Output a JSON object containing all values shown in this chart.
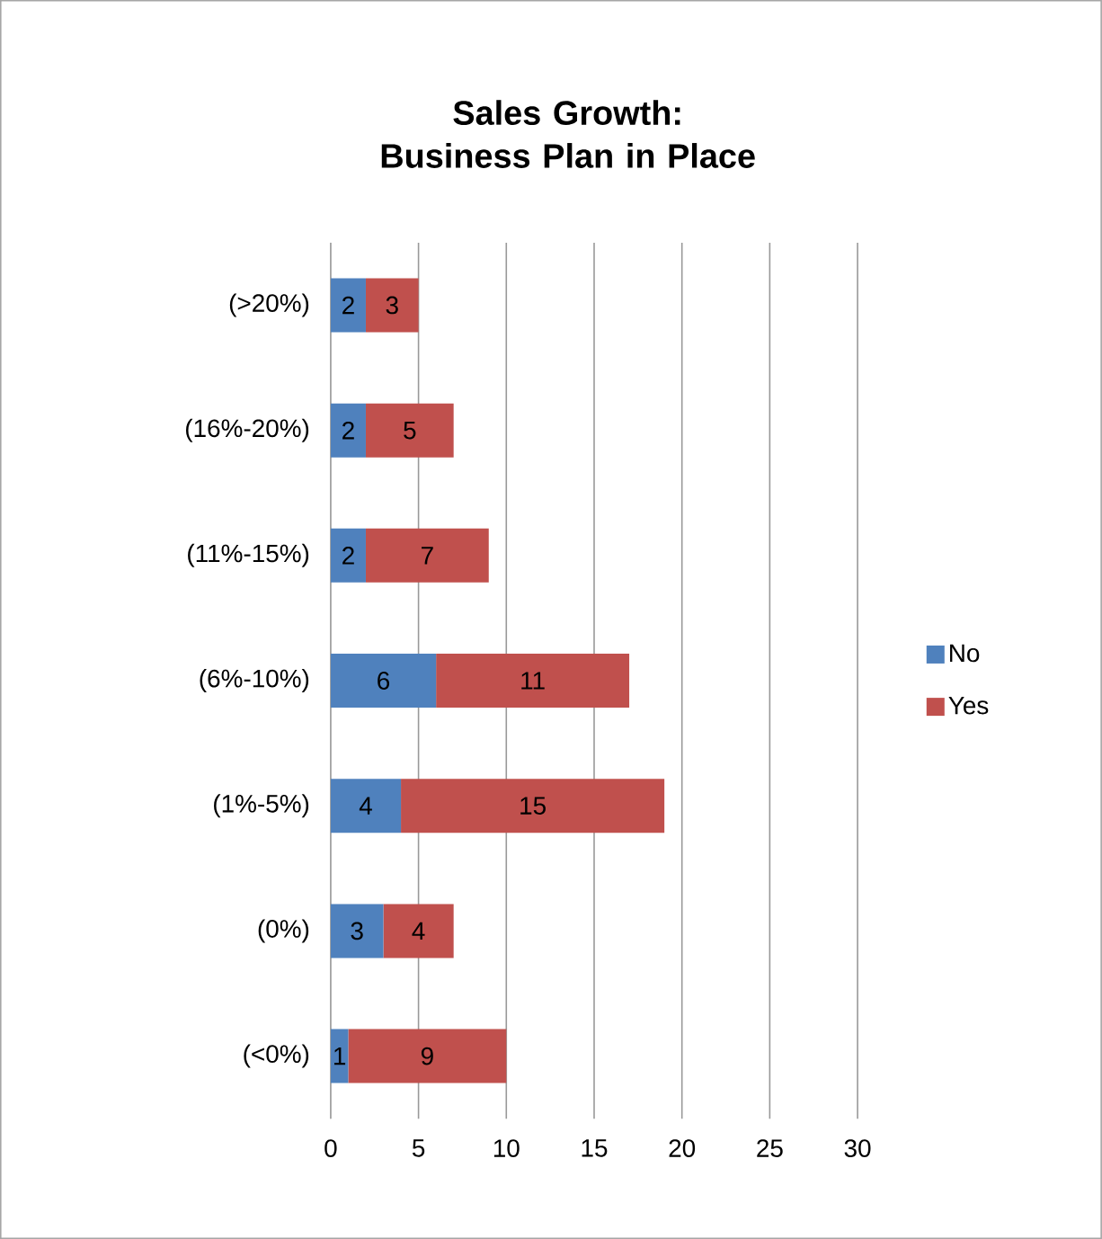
{
  "chart_data": {
    "type": "bar",
    "orientation": "horizontal",
    "stacked": true,
    "title": "Sales Growth: Business Plan in Place",
    "categories": [
      "(>20%)",
      "(16%-20%)",
      "(11%-15%)",
      "(6%-10%)",
      "(1%-5%)",
      "(0%)",
      "(<0%)"
    ],
    "series": [
      {
        "name": "No",
        "color": "#4f81bd",
        "values": [
          2,
          2,
          2,
          6,
          4,
          3,
          1
        ]
      },
      {
        "name": "Yes",
        "color": "#c0504d",
        "values": [
          3,
          5,
          7,
          11,
          15,
          4,
          9
        ]
      }
    ],
    "xlim": [
      0,
      30
    ],
    "xticks": [
      0,
      5,
      10,
      15,
      20,
      25,
      30
    ],
    "grid": "x",
    "legend": "right",
    "data_labels": true
  }
}
